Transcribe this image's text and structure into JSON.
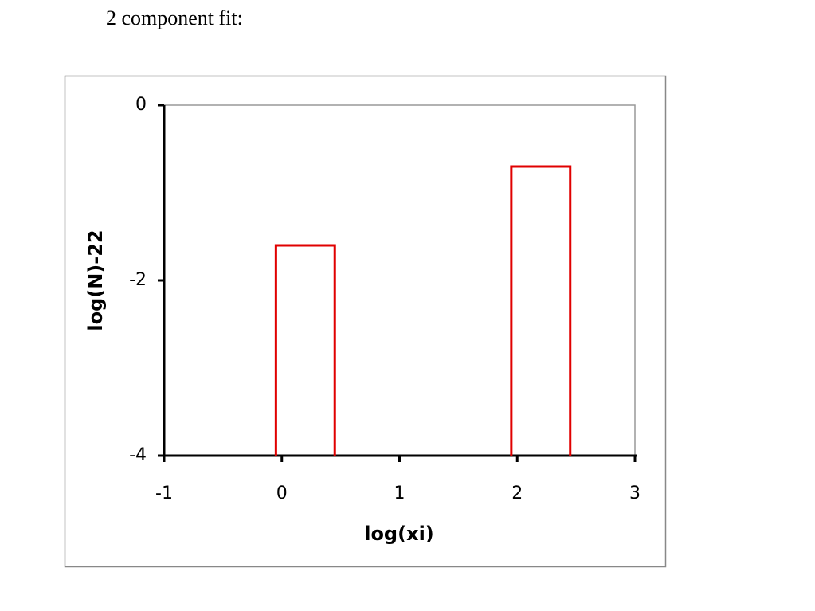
{
  "chart_data": {
    "type": "rect-bar",
    "title": "2 component fit:",
    "x_label": "log(xi)",
    "y_label": "log(N)-22",
    "x_start": [
      -0.05,
      1.95
    ],
    "x_end": [
      0.45,
      2.45
    ],
    "values": [
      -1.6,
      -0.7
    ],
    "color": "#e00000",
    "xlim": [
      -1,
      3
    ],
    "xticks": [
      -1,
      0,
      1,
      2,
      3
    ],
    "ylim": [
      -4,
      0
    ],
    "yticks": [
      -4,
      -2,
      0
    ]
  }
}
